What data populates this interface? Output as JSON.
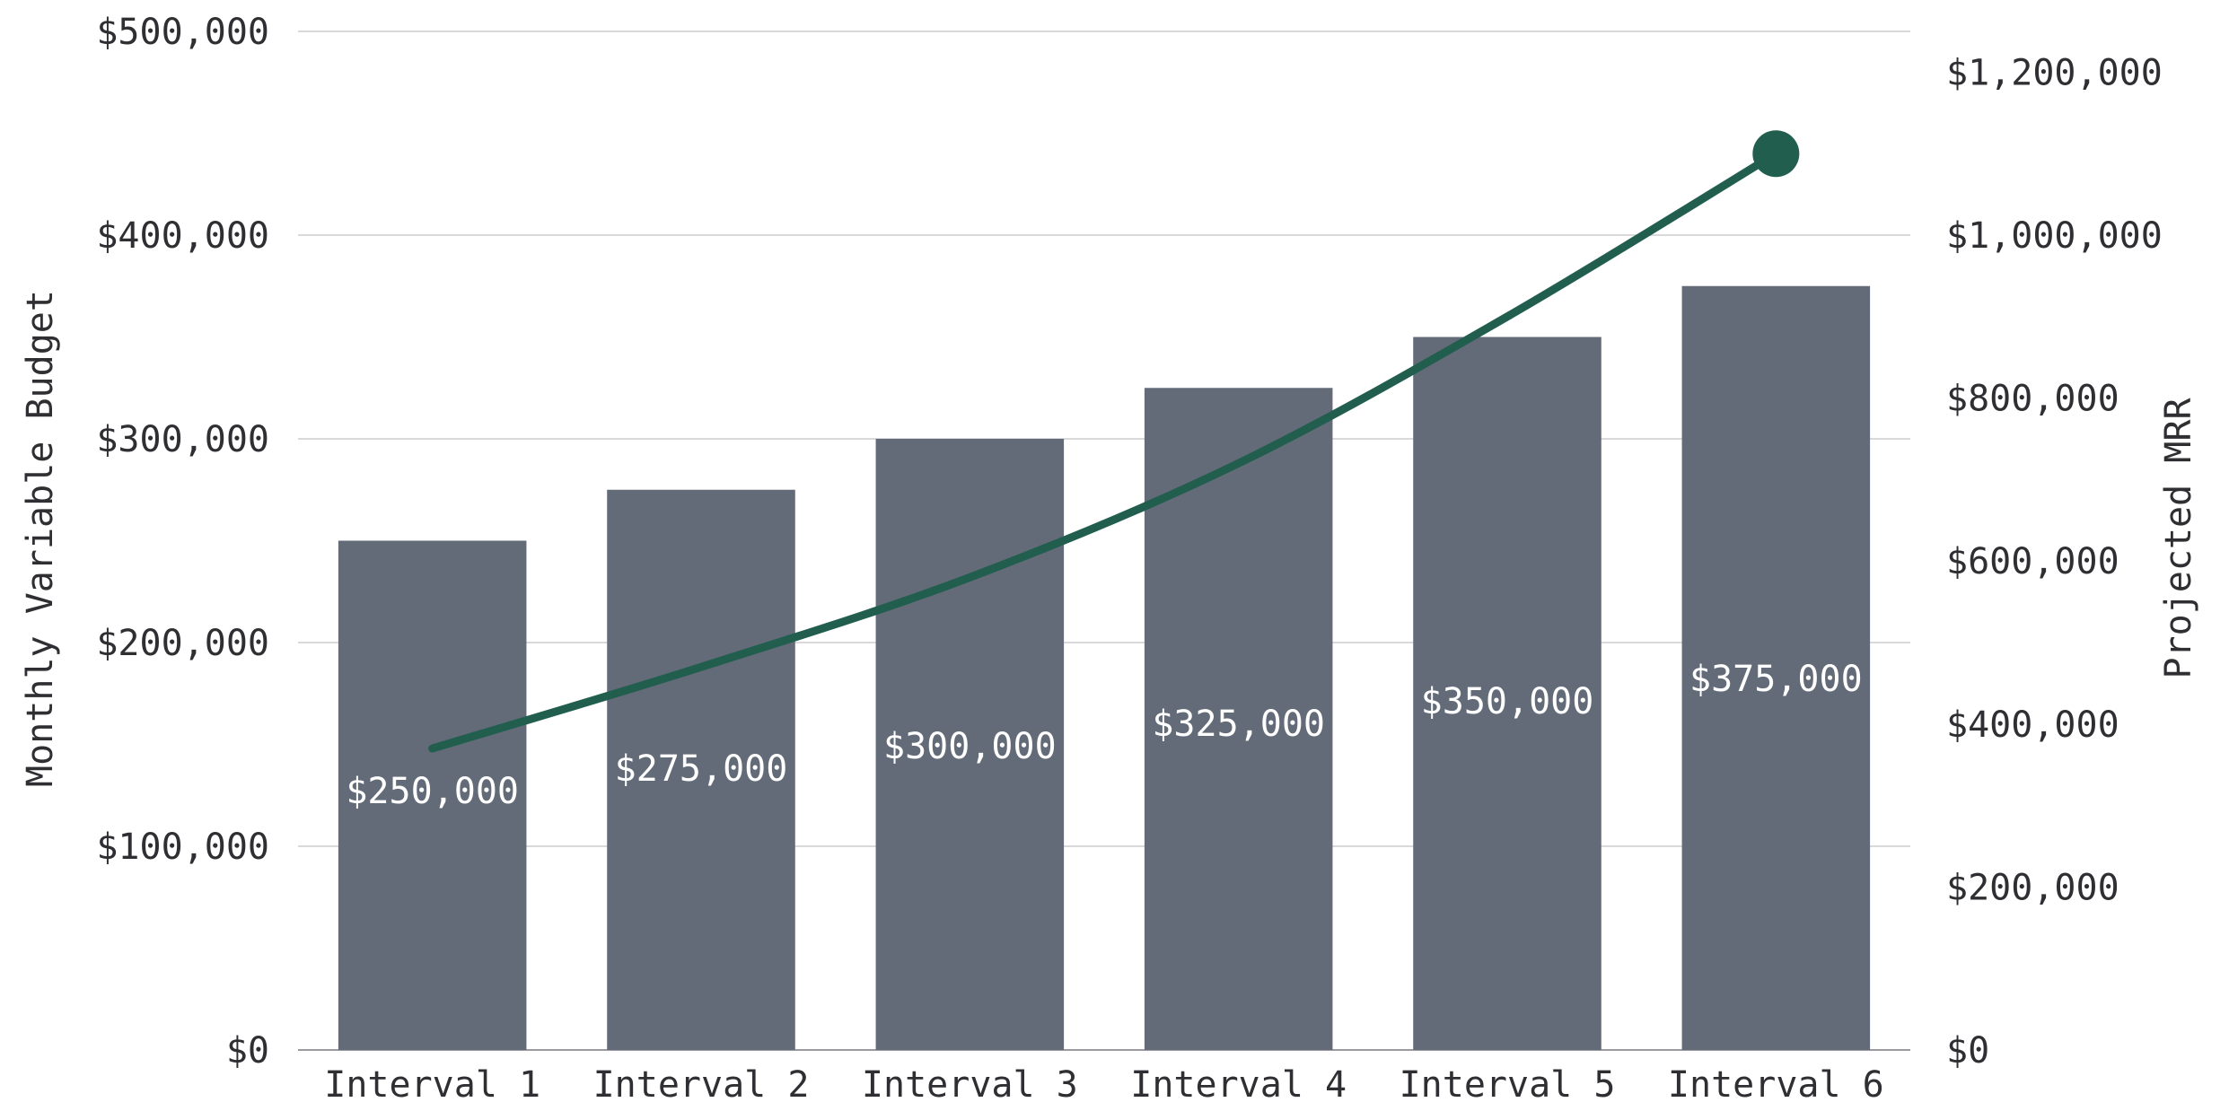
{
  "chart_data": {
    "type": "bar",
    "categories": [
      "Interval 1",
      "Interval 2",
      "Interval 3",
      "Interval 4",
      "Interval 5",
      "Interval 6"
    ],
    "series": [
      {
        "name": "Monthly Variable Budget",
        "kind": "bar",
        "axis": "left",
        "color": "#636b79",
        "values": [
          250000,
          275000,
          300000,
          325000,
          350000,
          375000
        ],
        "data_labels": [
          "$250,000",
          "$275,000",
          "$300,000",
          "$325,000",
          "$350,000",
          "$375,000"
        ]
      },
      {
        "name": "Projected MRR",
        "kind": "line",
        "axis": "right",
        "color": "#215e4e",
        "values": [
          370000,
          470000,
          580000,
          720000,
          900000,
          1100000
        ]
      }
    ],
    "ylabel": "Monthly Variable Budget",
    "y2label": "Projected MRR",
    "ylim": [
      0,
      500000
    ],
    "y2lim": [
      0,
      1250000
    ],
    "yticks": [
      "$0",
      "$100,000",
      "$200,000",
      "$300,000",
      "$400,000",
      "$500,000"
    ],
    "y2ticks": [
      "$0",
      "$200,000",
      "$400,000",
      "$600,000",
      "$800,000",
      "$1,000,000",
      "$1,200,000"
    ],
    "grid": true,
    "legend": "none"
  }
}
